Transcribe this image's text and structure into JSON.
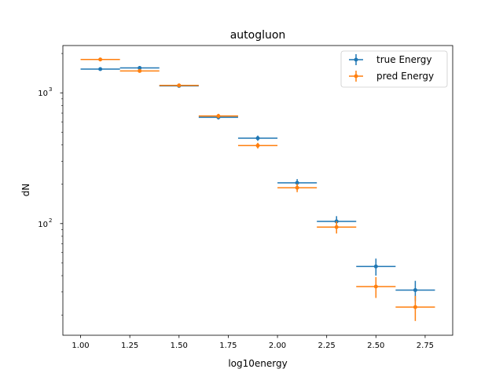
{
  "chart_data": {
    "type": "scatter",
    "title": "autogluon",
    "xlabel": "log10energy",
    "ylabel": "dN",
    "xlim": [
      0.91,
      2.89
    ],
    "ylim": [
      14,
      2300
    ],
    "yscale": "log",
    "grid": false,
    "legend_position": "top-right",
    "x_ticks": [
      {
        "value": 1.0,
        "label": "1.00"
      },
      {
        "value": 1.25,
        "label": "1.25"
      },
      {
        "value": 1.5,
        "label": "1.50"
      },
      {
        "value": 1.75,
        "label": "1.75"
      },
      {
        "value": 2.0,
        "label": "2.00"
      },
      {
        "value": 2.25,
        "label": "2.25"
      },
      {
        "value": 2.5,
        "label": "2.50"
      },
      {
        "value": 2.75,
        "label": "2.75"
      }
    ],
    "y_ticks": [
      {
        "value": 100,
        "base": "10",
        "exp": "2"
      },
      {
        "value": 1000,
        "base": "10",
        "exp": "3"
      }
    ],
    "x_halfwidth": 0.1,
    "series": [
      {
        "name": "true Energy",
        "color": "#1f77b4",
        "x": [
          1.1,
          1.3,
          1.5,
          1.7,
          1.9,
          2.1,
          2.3,
          2.5,
          2.7
        ],
        "y": [
          1520,
          1550,
          1130,
          650,
          450,
          205,
          104,
          47,
          31
        ],
        "yerr": [
          39,
          39,
          34,
          25,
          21,
          14,
          10,
          7,
          5.5
        ]
      },
      {
        "name": "pred Energy",
        "color": "#ff7f0e",
        "x": [
          1.1,
          1.3,
          1.5,
          1.7,
          1.9,
          2.1,
          2.3,
          2.5,
          2.7
        ],
        "y": [
          1800,
          1470,
          1140,
          665,
          395,
          188,
          94,
          33,
          23
        ],
        "yerr": [
          42,
          38,
          34,
          26,
          20,
          14,
          10,
          6,
          5
        ]
      }
    ]
  }
}
